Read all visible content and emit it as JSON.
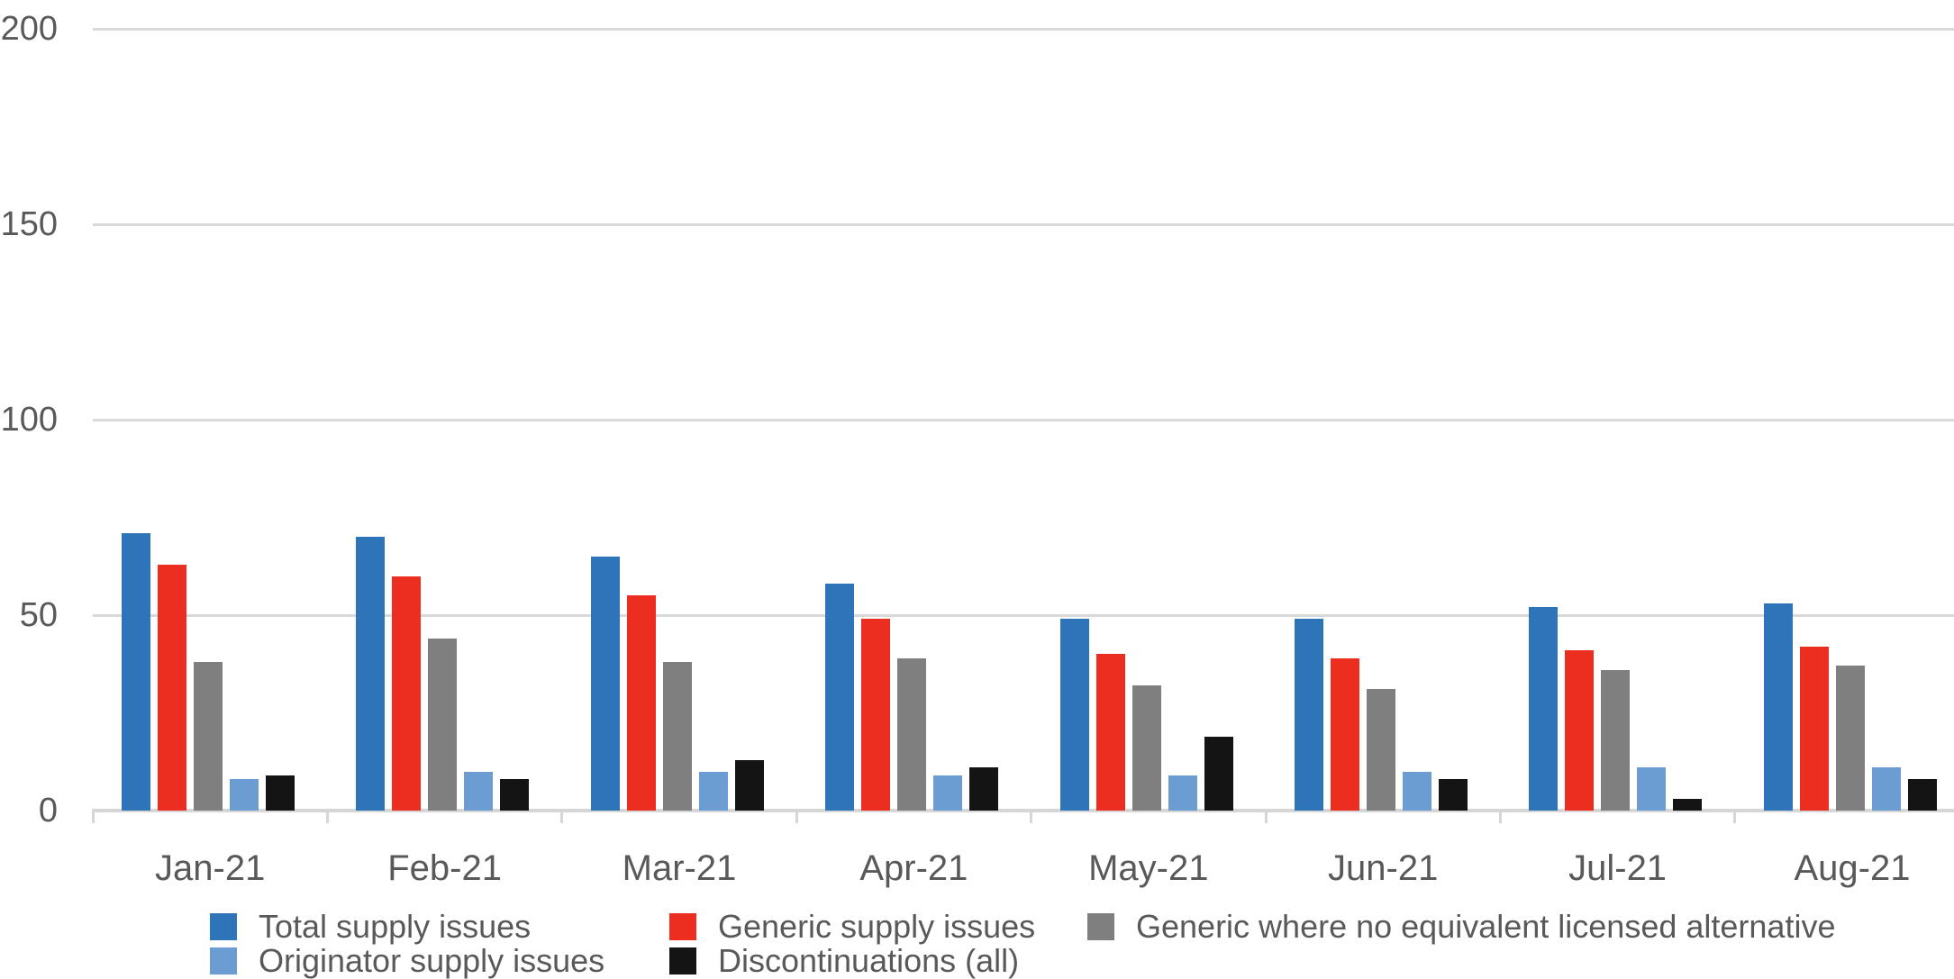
{
  "chart_data": {
    "type": "bar",
    "title": "",
    "categories": [
      "Jan-21",
      "Feb-21",
      "Mar-21",
      "Apr-21",
      "May-21",
      "Jun-21",
      "Jul-21",
      "Aug-21"
    ],
    "series": [
      {
        "name": "Total supply issues",
        "color": "#2E74B9",
        "values": [
          71,
          70,
          65,
          58,
          49,
          49,
          52,
          53
        ]
      },
      {
        "name": "Generic supply issues",
        "color": "#EC2E20",
        "values": [
          63,
          60,
          55,
          49,
          40,
          39,
          41,
          42
        ]
      },
      {
        "name": "Generic where no equivalent licensed alternative",
        "color": "#7F7F7F",
        "values": [
          38,
          44,
          38,
          39,
          32,
          31,
          36,
          37
        ]
      },
      {
        "name": "Originator supply issues",
        "color": "#6B9DD3",
        "values": [
          8,
          10,
          10,
          9,
          9,
          10,
          11,
          11
        ]
      },
      {
        "name": "Discontinuations (all)",
        "color": "#141414",
        "values": [
          9,
          8,
          13,
          11,
          19,
          8,
          3,
          8
        ]
      }
    ],
    "yticks": [
      0,
      50,
      100,
      150,
      200
    ],
    "ylim": [
      0,
      200
    ],
    "grid": "horizontal-on",
    "legend_position": "bottom",
    "legend_rows": [
      [
        0,
        1,
        2
      ],
      [
        3,
        4
      ]
    ],
    "colors": {
      "gridline": "#D9D9D9",
      "axis": "#D6D6D6",
      "text": "#595959",
      "background": "#FFFFFF"
    }
  }
}
